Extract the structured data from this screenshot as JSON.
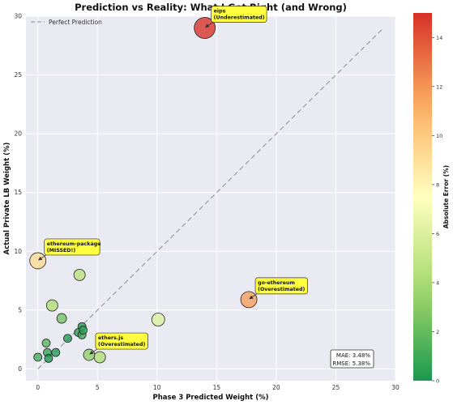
{
  "chart_data": {
    "type": "scatter",
    "title": "Prediction vs Reality: What I Got Right (and Wrong)",
    "xlabel": "Phase 3 Predicted Weight (%)",
    "ylabel": "Actual Private LB Weight (%)",
    "xlim": [
      -1,
      30
    ],
    "ylim": [
      -1,
      30
    ],
    "x_ticks": [
      0,
      5,
      10,
      15,
      20,
      25,
      30
    ],
    "y_ticks": [
      0,
      5,
      10,
      15,
      20,
      25,
      30
    ],
    "grid": true,
    "legend": {
      "placement": "top-left",
      "entries": [
        "Perfect Prediction"
      ]
    },
    "reference_line": {
      "name": "Perfect Prediction",
      "from": [
        0,
        0
      ],
      "to": [
        29,
        29
      ],
      "color": "#a0a0a0"
    },
    "colorbar": {
      "label": "Absolute Error (%)",
      "range": [
        0,
        15
      ],
      "ticks": [
        0,
        2,
        4,
        6,
        8,
        10,
        12,
        14
      ],
      "colormap": "RdYlGn_r"
    },
    "points": [
      {
        "x": 14.0,
        "y": 29.0,
        "error": 15.0,
        "size": 13
      },
      {
        "x": 17.7,
        "y": 5.9,
        "error": 11.8,
        "size": 10
      },
      {
        "x": 0.0,
        "y": 9.2,
        "error": 9.2,
        "size": 10
      },
      {
        "x": 4.3,
        "y": 1.2,
        "error": 3.1,
        "size": 7
      },
      {
        "x": 10.1,
        "y": 4.2,
        "error": 5.9,
        "size": 8
      },
      {
        "x": 3.5,
        "y": 8.0,
        "error": 4.5,
        "size": 7
      },
      {
        "x": 1.2,
        "y": 5.4,
        "error": 4.2,
        "size": 7
      },
      {
        "x": 5.2,
        "y": 1.0,
        "error": 4.2,
        "size": 7
      },
      {
        "x": 0.0,
        "y": 1.0,
        "error": 1.0,
        "size": 5
      },
      {
        "x": 0.7,
        "y": 2.2,
        "error": 1.5,
        "size": 5
      },
      {
        "x": 0.8,
        "y": 1.4,
        "error": 0.6,
        "size": 5
      },
      {
        "x": 0.9,
        "y": 0.9,
        "error": 0.0,
        "size": 5
      },
      {
        "x": 1.5,
        "y": 1.4,
        "error": 0.1,
        "size": 5
      },
      {
        "x": 2.0,
        "y": 4.3,
        "error": 2.3,
        "size": 6
      },
      {
        "x": 2.5,
        "y": 2.6,
        "error": 0.1,
        "size": 5
      },
      {
        "x": 3.4,
        "y": 3.1,
        "error": 0.3,
        "size": 5
      },
      {
        "x": 3.7,
        "y": 3.6,
        "error": 0.1,
        "size": 5
      },
      {
        "x": 3.7,
        "y": 2.9,
        "error": 0.8,
        "size": 5
      },
      {
        "x": 3.8,
        "y": 3.3,
        "error": 0.5,
        "size": 5
      }
    ],
    "annotations": [
      {
        "text": "eips\n(Underestimated)",
        "target": [
          14.0,
          29.0
        ],
        "placement": "upper-right"
      },
      {
        "text": "go-ethereum\n(Overestimated)",
        "target": [
          17.7,
          5.9
        ],
        "placement": "upper-right"
      },
      {
        "text": "ethereum-package\n(MISSED!)",
        "target": [
          0.0,
          9.2
        ],
        "placement": "upper-right"
      },
      {
        "text": "ethers.js\n(Overestimated)",
        "target": [
          4.3,
          1.2
        ],
        "placement": "upper-right"
      }
    ],
    "stats_box": {
      "lines": [
        "MAE: 3.48%",
        "RMSE: 5.38%"
      ],
      "placement": "bottom-right"
    }
  }
}
